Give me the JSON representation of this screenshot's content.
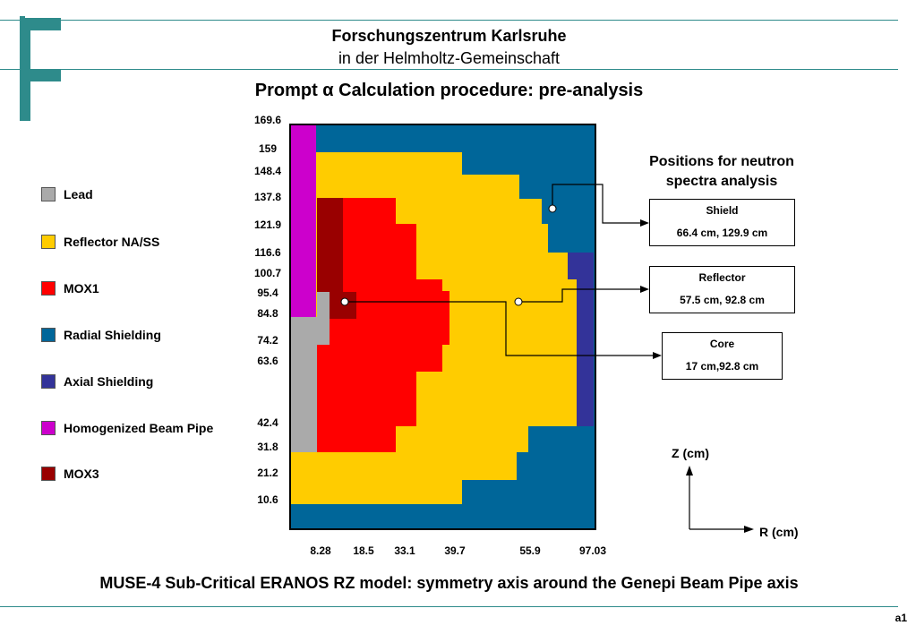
{
  "header": {
    "institution_line1": "Forschungszentrum Karlsruhe",
    "institution_line2": "in der Helmholtz-Gemeinschaft",
    "title": "Prompt α Calculation procedure: pre-analysis"
  },
  "colors": {
    "lead": "#aaaaaa",
    "reflector": "#ffcc00",
    "mox1": "#ff0000",
    "radial_shielding": "#006699",
    "axial_shielding": "#333399",
    "beam_pipe": "#cc00cc",
    "mox3": "#990000",
    "accent_line": "#2e8b8b"
  },
  "legend": [
    {
      "label": "Lead",
      "color": "#aaaaaa"
    },
    {
      "label": "Reflector NA/SS",
      "color": "#ffcc00"
    },
    {
      "label": "MOX1",
      "color": "#ff0000"
    },
    {
      "label": "Radial Shielding",
      "color": "#006699"
    },
    {
      "label": "Axial Shielding",
      "color": "#333399"
    },
    {
      "label": "Homogenized Beam Pipe",
      "color": "#cc00cc"
    },
    {
      "label": "MOX3",
      "color": "#990000"
    }
  ],
  "z_labels": [
    "169.6",
    "159",
    "148.4",
    "137.8",
    "121.9",
    "116.6",
    "100.7",
    "95.4",
    "84.8",
    "74.2",
    "63.6",
    "42.4",
    "31.8",
    "21.2",
    "10.6"
  ],
  "r_labels": [
    "8.28",
    "18.5",
    "33.1",
    "39.7",
    "55.9",
    "97.03"
  ],
  "positions_heading_line1": "Positions for neutron",
  "positions_heading_line2": "spectra analysis",
  "positions": [
    {
      "name": "Shield",
      "coords": "66.4 cm, 129.9 cm"
    },
    {
      "name": "Reflector",
      "coords": "57.5 cm, 92.8 cm"
    },
    {
      "name": "Core",
      "coords": "17 cm,92.8 cm"
    }
  ],
  "axes": {
    "z": "Z (cm)",
    "r": "R (cm)"
  },
  "caption": "MUSE-4 Sub-Critical ERANOS RZ model: symmetry axis around the Genepi Beam Pipe axis",
  "slide_number": "a1"
}
